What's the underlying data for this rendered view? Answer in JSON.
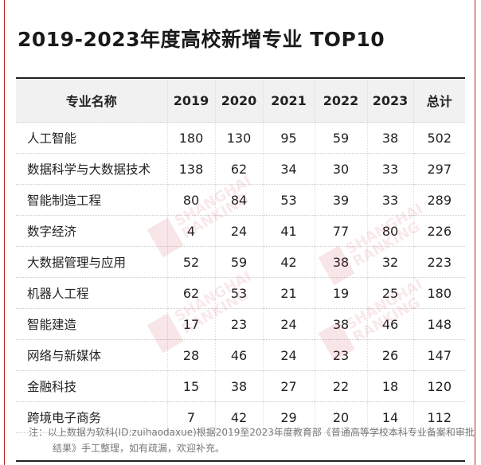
{
  "title": "2019-2023年度高校新增专业 TOP10",
  "chart_data": {
    "type": "table",
    "title": "2019-2023年度高校新增专业 TOP10",
    "columns": [
      "专业名称",
      "2019",
      "2020",
      "2021",
      "2022",
      "2023",
      "总计"
    ],
    "rows": [
      {
        "name": "人工智能",
        "values": [
          180,
          130,
          95,
          59,
          38
        ],
        "total": 502
      },
      {
        "name": "数据科学与大数据技术",
        "values": [
          138,
          62,
          34,
          30,
          33
        ],
        "total": 297
      },
      {
        "name": "智能制造工程",
        "values": [
          80,
          84,
          53,
          39,
          33
        ],
        "total": 289
      },
      {
        "name": "数字经济",
        "values": [
          4,
          24,
          41,
          77,
          80
        ],
        "total": 226
      },
      {
        "name": "大数据管理与应用",
        "values": [
          52,
          59,
          42,
          38,
          32
        ],
        "total": 223
      },
      {
        "name": "机器人工程",
        "values": [
          62,
          53,
          21,
          19,
          25
        ],
        "total": 180
      },
      {
        "name": "智能建造",
        "values": [
          17,
          23,
          24,
          38,
          46
        ],
        "total": 148
      },
      {
        "name": "网络与新媒体",
        "values": [
          28,
          46,
          24,
          23,
          26
        ],
        "total": 147
      },
      {
        "name": "金融科技",
        "values": [
          15,
          38,
          27,
          22,
          18
        ],
        "total": 120
      },
      {
        "name": "跨境电子商务",
        "values": [
          7,
          42,
          29,
          20,
          14
        ],
        "total": 112
      }
    ]
  },
  "note": "注：以上数据为软科(ID:zuihaodaxue)根据2019至2023年度教育部《普通高等学校本科专业备案和审批结果》手工整理，如有疏漏，欢迎补充。",
  "watermark": {
    "line1": "SHANGHAI",
    "line2": "RANKING"
  },
  "colors": {
    "frame": "#bb2222",
    "header_bg": "#f1f1f1",
    "watermark": "#c8283c"
  }
}
